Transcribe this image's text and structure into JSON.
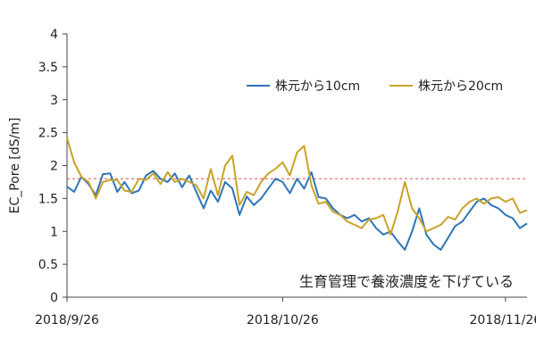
{
  "chart_data": {
    "type": "line",
    "ylabel": "EC_Pore [dS/m]",
    "ylim": [
      0,
      4
    ],
    "y_ticks": [
      "0",
      "0.5",
      "1",
      "1.5",
      "2",
      "2.5",
      "3",
      "3.5",
      "4"
    ],
    "x_tick_labels": [
      "2018/9/26",
      "2018/10/26",
      "2018/11/26"
    ],
    "x_ticks": [
      "2018-09-26",
      "2018-10-26",
      "2018-11-26"
    ],
    "xlim": [
      "2018-09-26",
      "2018-11-29"
    ],
    "reference_line": {
      "y": 1.8,
      "style": "dashed",
      "color": "#e05050"
    },
    "annotation": "生育管理で養液濃度を下げている",
    "legend_position": "top-right",
    "colors": {
      "10cm": "#2e75b6",
      "20cm": "#c9a227",
      "axis": "#444444"
    },
    "series": [
      {
        "name": "株元から10cm",
        "x": [
          "2018-09-26",
          "2018-09-27",
          "2018-09-28",
          "2018-09-29",
          "2018-09-30",
          "2018-10-01",
          "2018-10-02",
          "2018-10-03",
          "2018-10-04",
          "2018-10-05",
          "2018-10-06",
          "2018-10-07",
          "2018-10-08",
          "2018-10-09",
          "2018-10-10",
          "2018-10-11",
          "2018-10-12",
          "2018-10-13",
          "2018-10-14",
          "2018-10-15",
          "2018-10-16",
          "2018-10-17",
          "2018-10-18",
          "2018-10-19",
          "2018-10-20",
          "2018-10-21",
          "2018-10-22",
          "2018-10-23",
          "2018-10-24",
          "2018-10-25",
          "2018-10-26",
          "2018-10-27",
          "2018-10-28",
          "2018-10-29",
          "2018-10-30",
          "2018-10-31",
          "2018-11-01",
          "2018-11-02",
          "2018-11-03",
          "2018-11-04",
          "2018-11-05",
          "2018-11-06",
          "2018-11-07",
          "2018-11-08",
          "2018-11-09",
          "2018-11-10",
          "2018-11-11",
          "2018-11-12",
          "2018-11-13",
          "2018-11-14",
          "2018-11-15",
          "2018-11-16",
          "2018-11-17",
          "2018-11-18",
          "2018-11-19",
          "2018-11-20",
          "2018-11-21",
          "2018-11-22",
          "2018-11-23",
          "2018-11-24",
          "2018-11-25",
          "2018-11-26",
          "2018-11-27",
          "2018-11-28",
          "2018-11-29"
        ],
        "values": [
          1.68,
          1.6,
          1.83,
          1.72,
          1.55,
          1.87,
          1.88,
          1.6,
          1.75,
          1.58,
          1.62,
          1.85,
          1.92,
          1.8,
          1.75,
          1.88,
          1.67,
          1.85,
          1.6,
          1.35,
          1.62,
          1.45,
          1.75,
          1.65,
          1.25,
          1.53,
          1.4,
          1.5,
          1.65,
          1.8,
          1.75,
          1.58,
          1.8,
          1.65,
          1.9,
          1.52,
          1.5,
          1.35,
          1.25,
          1.2,
          1.25,
          1.15,
          1.2,
          1.05,
          0.95,
          1.0,
          0.85,
          0.72,
          1.0,
          1.35,
          0.95,
          0.8,
          0.72,
          0.9,
          1.08,
          1.15,
          1.3,
          1.45,
          1.5,
          1.4,
          1.35,
          1.25,
          1.2,
          1.05,
          1.12
        ]
      },
      {
        "name": "株元から20cm",
        "x": [
          "2018-09-26",
          "2018-09-27",
          "2018-09-28",
          "2018-09-29",
          "2018-09-30",
          "2018-10-01",
          "2018-10-02",
          "2018-10-03",
          "2018-10-04",
          "2018-10-05",
          "2018-10-06",
          "2018-10-07",
          "2018-10-08",
          "2018-10-09",
          "2018-10-10",
          "2018-10-11",
          "2018-10-12",
          "2018-10-13",
          "2018-10-14",
          "2018-10-15",
          "2018-10-16",
          "2018-10-17",
          "2018-10-18",
          "2018-10-19",
          "2018-10-20",
          "2018-10-21",
          "2018-10-22",
          "2018-10-23",
          "2018-10-24",
          "2018-10-25",
          "2018-10-26",
          "2018-10-27",
          "2018-10-28",
          "2018-10-29",
          "2018-10-30",
          "2018-10-31",
          "2018-11-01",
          "2018-11-02",
          "2018-11-03",
          "2018-11-04",
          "2018-11-05",
          "2018-11-06",
          "2018-11-07",
          "2018-11-08",
          "2018-11-09",
          "2018-11-10",
          "2018-11-11",
          "2018-11-12",
          "2018-11-13",
          "2018-11-14",
          "2018-11-15",
          "2018-11-16",
          "2018-11-17",
          "2018-11-18",
          "2018-11-19",
          "2018-11-20",
          "2018-11-21",
          "2018-11-22",
          "2018-11-23",
          "2018-11-24",
          "2018-11-25",
          "2018-11-26",
          "2018-11-27",
          "2018-11-28",
          "2018-11-29"
        ],
        "values": [
          2.42,
          2.05,
          1.83,
          1.75,
          1.5,
          1.75,
          1.78,
          1.78,
          1.62,
          1.6,
          1.8,
          1.78,
          1.88,
          1.72,
          1.9,
          1.75,
          1.8,
          1.75,
          1.7,
          1.5,
          1.95,
          1.55,
          2.0,
          2.15,
          1.4,
          1.6,
          1.55,
          1.75,
          1.88,
          1.95,
          2.05,
          1.85,
          2.2,
          2.3,
          1.7,
          1.42,
          1.45,
          1.3,
          1.25,
          1.15,
          1.1,
          1.05,
          1.18,
          1.2,
          1.25,
          0.95,
          1.3,
          1.75,
          1.35,
          1.2,
          1.0,
          1.05,
          1.1,
          1.22,
          1.18,
          1.35,
          1.45,
          1.5,
          1.42,
          1.5,
          1.52,
          1.45,
          1.5,
          1.28,
          1.32
        ]
      }
    ]
  }
}
